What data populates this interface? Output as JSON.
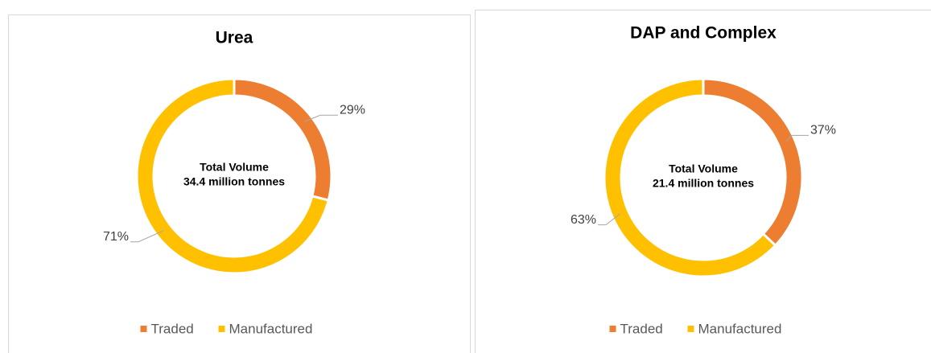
{
  "chart_data": [
    {
      "type": "donut",
      "title": "Urea",
      "categories": [
        "Traded",
        "Manufactured"
      ],
      "values": [
        29,
        71
      ],
      "value_labels": [
        "29%",
        "71%"
      ],
      "colors": [
        "#ED7D31",
        "#FFC000"
      ],
      "annotations": [
        "Total Volume",
        "34.4 million tonnes"
      ],
      "legend": "bottom"
    },
    {
      "type": "donut",
      "title": "DAP and Complex",
      "categories": [
        "Traded",
        "Manufactured"
      ],
      "values": [
        37,
        63
      ],
      "value_labels": [
        "37%",
        "63%"
      ],
      "colors": [
        "#ED7D31",
        "#FFC000"
      ],
      "annotations": [
        "Total Volume",
        "21.4 million tonnes"
      ],
      "legend": "bottom"
    }
  ]
}
